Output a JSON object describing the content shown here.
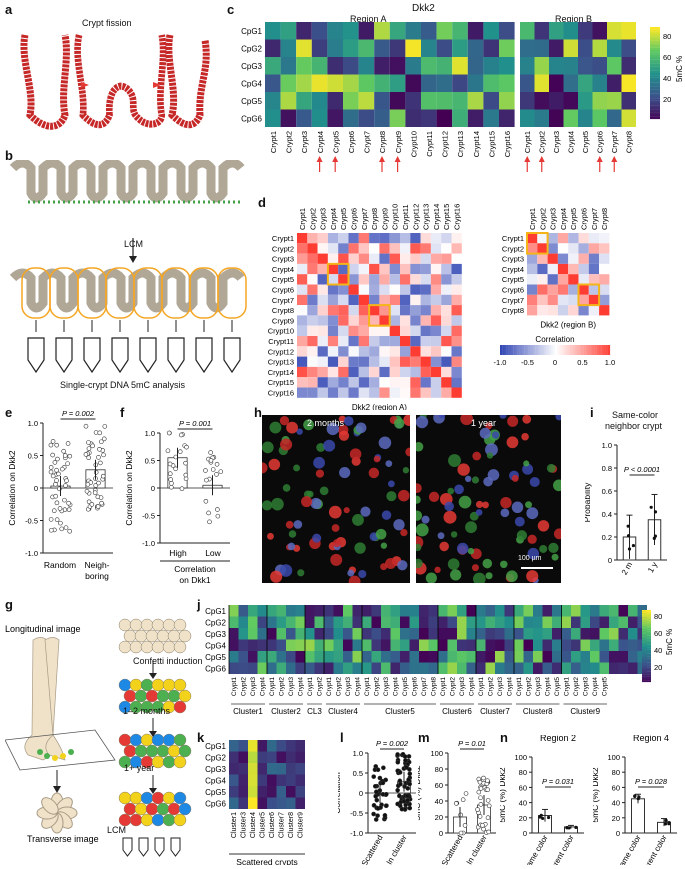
{
  "panels": {
    "a": {
      "letter": "a",
      "title": "Crypt fission"
    },
    "b": {
      "letter": "b",
      "lcm": "LCM",
      "caption": "Single-crypt DNA 5mC analysis"
    },
    "c": {
      "letter": "c",
      "gene": "Dkk2",
      "region_a_label": "Region A",
      "region_b_label": "Region B",
      "rows": [
        "CpG1",
        "CpG2",
        "CpG3",
        "CpG4",
        "CpG5",
        "CpG6"
      ],
      "cols_a": [
        "Crypt1",
        "Crypt2",
        "Crypt3",
        "Crypt4",
        "Crypt5",
        "Crypt6",
        "Crypt7",
        "Crypt8",
        "Crypt9",
        "Crypt10",
        "Crypt11",
        "Crypt12",
        "Crypt13",
        "Crypt14",
        "Crypt15",
        "Crypt16"
      ],
      "cols_b": [
        "Crypt1",
        "Crypt2",
        "Crypt3",
        "Crypt4",
        "Crypt5",
        "Crypt6",
        "Crypt7",
        "Crypt8"
      ],
      "colorbar_label": "5mC %",
      "colorbar_ticks": [
        "80",
        "60",
        "40",
        "20"
      ],
      "arrows_a": [
        4,
        5,
        8,
        9
      ],
      "arrows_b": [
        1,
        2,
        6,
        7
      ]
    },
    "d": {
      "letter": "d",
      "xlabel_a": "Dkk2 (region A)",
      "xlabel_b": "Dkk2 (region B)",
      "legend_title": "Correlation",
      "legend_ticks": [
        "-1.0",
        "-0.5",
        "0",
        "0.5",
        "1.0"
      ]
    },
    "e": {
      "letter": "e",
      "ylabel": "Correlation on Dkk2",
      "pvalue": "P = 0.002",
      "categories": [
        "Random",
        "Neigh-\nboring"
      ],
      "cat1": "Random",
      "cat2a": "Neigh-",
      "cat2b": "boring",
      "yticks": [
        "1.0",
        "0.5",
        "0",
        "-0.5",
        "-1.0"
      ]
    },
    "f": {
      "letter": "f",
      "ylabel": "Correlation on Dkk2",
      "pvalue": "P = 0.001",
      "cat1": "High",
      "cat2": "Low",
      "xlabel1": "Correlation",
      "xlabel2": "on Dkk1",
      "yticks": [
        "1.0",
        "0.5",
        "0",
        "-0.5",
        "-1.0"
      ]
    },
    "g": {
      "letter": "g",
      "long": "Longitudinal image",
      "trans": "Transverse image",
      "confetti": "Confetti induction",
      "t1": "1–2 months",
      "t2": "1+ year",
      "lcm": "LCM"
    },
    "h": {
      "letter": "h",
      "label1": "2 months",
      "label2": "1 year",
      "scalebar": "100 µm"
    },
    "i": {
      "letter": "i",
      "title1": "Same-color",
      "title2": "neighbor crypt",
      "ylabel": "Probability",
      "pvalue": "P < 0.0001",
      "cats": [
        "2 m",
        "1 y"
      ],
      "yticks": [
        "1.0",
        "0.8",
        "0.6",
        "0.4",
        "0.2",
        "0"
      ]
    },
    "j": {
      "letter": "j",
      "rows": [
        "CpG1",
        "CpG2",
        "CpG3",
        "CpG4",
        "CpG5",
        "CpG6"
      ],
      "clusters": [
        "Cluster1",
        "Cluster2",
        "CL3",
        "Cluster4",
        "Cluster5",
        "Cluster6",
        "Cluster7",
        "Cluster8",
        "Cluster9"
      ],
      "colorbar_label": "5mC %",
      "colorbar_ticks": [
        "80",
        "60",
        "40",
        "20"
      ]
    },
    "k": {
      "letter": "k",
      "rows": [
        "CpG1",
        "CpG2",
        "CpG3",
        "CpG4",
        "CpG5",
        "CpG6"
      ],
      "cols": [
        "Cluster1",
        "Cluster3",
        "Cluster4",
        "Cluster5",
        "Cluster6",
        "Cluster7",
        "Cluster8",
        "Cluster9"
      ],
      "xlabel": "Scattered crypts"
    },
    "l": {
      "letter": "l",
      "ylabel": "Correlation",
      "pvalue": "P = 0.002",
      "cats": [
        "Scattered",
        "In cluster"
      ],
      "yticks": [
        "1.0",
        "0.5",
        "0",
        "-0.5",
        "-1.0"
      ]
    },
    "m": {
      "letter": "m",
      "ylabel": "5mC (%) Dkk2",
      "pvalue": "P = 0.01",
      "cats": [
        "Scattered",
        "In cluster"
      ],
      "yticks": [
        "100",
        "80",
        "60",
        "40",
        "20",
        "0"
      ]
    },
    "n": {
      "letter": "n",
      "region2": "Region 2",
      "region4": "Region 4",
      "ylabel": "5mC (%) Dkk2",
      "p2": "P = 0.031",
      "p4": "P = 0.028",
      "cats": [
        "Same color",
        "Different color"
      ],
      "yticks": [
        "100",
        "80",
        "60",
        "40",
        "20",
        "0"
      ]
    }
  },
  "chart_data": [
    {
      "type": "scatter",
      "panel": "e",
      "categories": [
        "Random",
        "Neighboring"
      ],
      "means": [
        0.03,
        0.28
      ],
      "ylim": [
        -1.0,
        1.0
      ],
      "ylabel": "Correlation on Dkk2"
    },
    {
      "type": "scatter",
      "panel": "f",
      "categories": [
        "High",
        "Low"
      ],
      "means": [
        0.55,
        0.05
      ],
      "ylim": [
        -1.0,
        1.0
      ],
      "ylabel": "Correlation on Dkk2"
    },
    {
      "type": "bar",
      "panel": "i",
      "categories": [
        "2 m",
        "1 y"
      ],
      "values": [
        0.2,
        0.35
      ],
      "errors": [
        0.19,
        0.22
      ],
      "ylim": [
        0,
        1.0
      ],
      "ylabel": "Probability"
    },
    {
      "type": "scatter",
      "panel": "l",
      "categories": [
        "Scattered",
        "In cluster"
      ],
      "means": [
        0.0,
        0.28
      ],
      "ylim": [
        -1.0,
        1.0
      ],
      "ylabel": "Correlation"
    },
    {
      "type": "scatter",
      "panel": "m",
      "categories": [
        "Scattered",
        "In cluster"
      ],
      "means": [
        20,
        35
      ],
      "ylim": [
        0,
        100
      ],
      "ylabel": "5mC (%) Dkk2"
    },
    {
      "type": "bar",
      "panel": "n-region2",
      "categories": [
        "Same color",
        "Different color"
      ],
      "values": [
        23,
        8
      ],
      "ylim": [
        0,
        100
      ],
      "ylabel": "5mC (%) Dkk2"
    },
    {
      "type": "bar",
      "panel": "n-region4",
      "categories": [
        "Same color",
        "Different color"
      ],
      "values": [
        45,
        14
      ],
      "ylim": [
        0,
        100
      ],
      "ylabel": "5mC (%) Dkk2"
    }
  ],
  "colors": {
    "red": "#d93a2b",
    "green": "#4caf50",
    "yellow": "#f2d21b",
    "blue": "#2b4bb0",
    "viridis_low": "#440154",
    "viridis_high": "#fde725",
    "orange_box": "#f5b418"
  }
}
